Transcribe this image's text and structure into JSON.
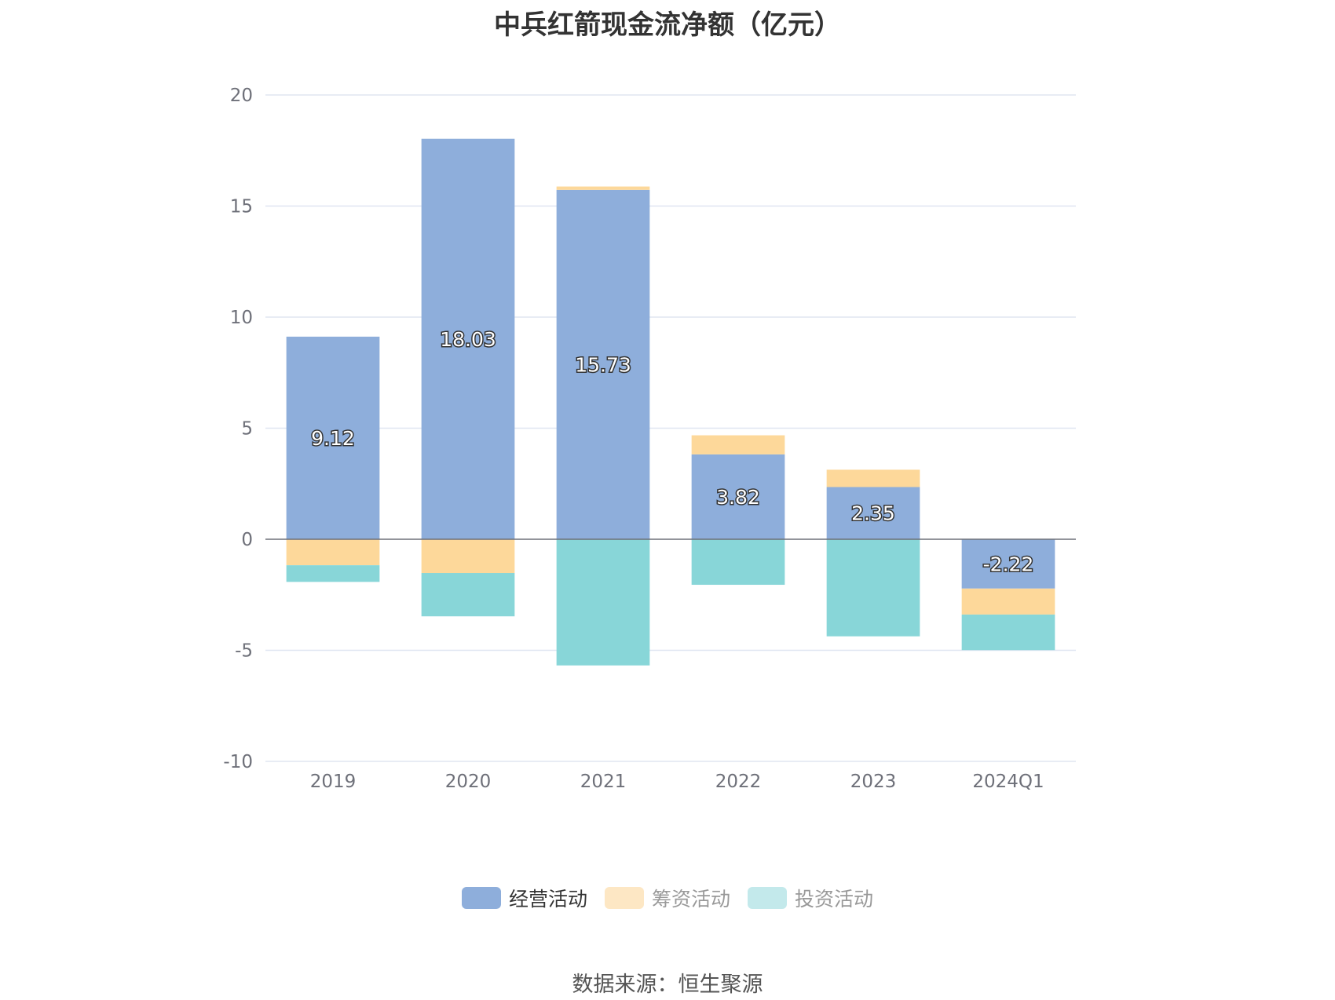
{
  "chart_data": {
    "type": "bar",
    "stacked": true,
    "title": "中兵红箭现金流净额（亿元）",
    "categories": [
      "2019",
      "2020",
      "2021",
      "2022",
      "2023",
      "2024Q1"
    ],
    "series": [
      {
        "name": "经营活动",
        "color": "#8eaedb",
        "values": [
          9.12,
          18.03,
          15.73,
          3.82,
          2.35,
          -2.22
        ],
        "labels": [
          "9.12",
          "18.03",
          "15.73",
          "3.82",
          "2.35",
          "-2.22"
        ]
      },
      {
        "name": "筹资活动",
        "color": "#fdd89a",
        "values": [
          -1.17,
          -1.52,
          0.15,
          0.86,
          0.78,
          -1.17
        ]
      },
      {
        "name": "投资活动",
        "color": "#88d6d8",
        "values": [
          -0.75,
          -1.95,
          -5.68,
          -2.05,
          -4.37,
          -1.6
        ]
      }
    ],
    "yaxis": {
      "min": -10,
      "max": 20,
      "ticks": [
        "20",
        "15",
        "10",
        "5",
        "0",
        "-5",
        "-10"
      ]
    },
    "grid": true,
    "legend_position": "bottom"
  },
  "legend": [
    {
      "label": "经营活动",
      "color": "#8eaedb"
    },
    {
      "label": "筹资活动",
      "color": "#fde7c4"
    },
    {
      "label": "投资活动",
      "color": "#c3e9eb"
    }
  ],
  "source": "数据来源：恒生聚源"
}
